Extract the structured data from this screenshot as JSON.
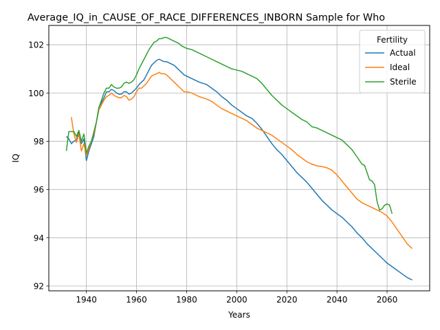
{
  "chart_data": {
    "type": "line",
    "title": "Average_IQ_in_CAUSE_OF_RACE_DIFFERENCES_INBORN Sample for Who",
    "xlabel": "Years",
    "ylabel": "IQ",
    "xlim": [
      1925,
      2077
    ],
    "ylim": [
      91.8,
      102.8
    ],
    "x_ticks": [
      1940,
      1960,
      1980,
      2000,
      2020,
      2040,
      2060
    ],
    "y_ticks": [
      92,
      94,
      96,
      98,
      100,
      102
    ],
    "grid": true,
    "legend": {
      "title": "Fertility",
      "placement": "upper right"
    },
    "series": [
      {
        "name": "Actual",
        "color": "#1f77b4",
        "points": [
          [
            1932,
            98.2
          ],
          [
            1933,
            98.1
          ],
          [
            1934,
            97.9
          ],
          [
            1935,
            98.0
          ],
          [
            1936,
            98.05
          ],
          [
            1937,
            98.4
          ],
          [
            1938,
            97.9
          ],
          [
            1939,
            98.1
          ],
          [
            1940,
            97.2
          ],
          [
            1941,
            97.6
          ],
          [
            1942,
            97.9
          ],
          [
            1943,
            98.2
          ],
          [
            1944,
            98.8
          ],
          [
            1945,
            99.4
          ],
          [
            1946,
            99.6
          ],
          [
            1947,
            99.8
          ],
          [
            1948,
            100.05
          ],
          [
            1949,
            100.05
          ],
          [
            1950,
            100.15
          ],
          [
            1951,
            100.1
          ],
          [
            1952,
            100.0
          ],
          [
            1953,
            99.95
          ],
          [
            1954,
            99.95
          ],
          [
            1955,
            100.05
          ],
          [
            1956,
            100.05
          ],
          [
            1957,
            99.95
          ],
          [
            1958,
            100.0
          ],
          [
            1959,
            100.1
          ],
          [
            1960,
            100.2
          ],
          [
            1961,
            100.35
          ],
          [
            1962,
            100.45
          ],
          [
            1963,
            100.55
          ],
          [
            1964,
            100.75
          ],
          [
            1965,
            100.95
          ],
          [
            1966,
            101.15
          ],
          [
            1967,
            101.25
          ],
          [
            1968,
            101.35
          ],
          [
            1969,
            101.4
          ],
          [
            1970,
            101.35
          ],
          [
            1971,
            101.3
          ],
          [
            1972,
            101.3
          ],
          [
            1973,
            101.25
          ],
          [
            1974,
            101.2
          ],
          [
            1975,
            101.15
          ],
          [
            1976,
            101.05
          ],
          [
            1977,
            100.95
          ],
          [
            1978,
            100.85
          ],
          [
            1979,
            100.75
          ],
          [
            1980,
            100.7
          ],
          [
            1982,
            100.6
          ],
          [
            1985,
            100.45
          ],
          [
            1988,
            100.35
          ],
          [
            1990,
            100.2
          ],
          [
            1992,
            100.05
          ],
          [
            1994,
            99.85
          ],
          [
            1996,
            99.7
          ],
          [
            1998,
            99.5
          ],
          [
            2000,
            99.35
          ],
          [
            2002,
            99.2
          ],
          [
            2004,
            99.05
          ],
          [
            2006,
            98.95
          ],
          [
            2008,
            98.75
          ],
          [
            2010,
            98.5
          ],
          [
            2012,
            98.2
          ],
          [
            2014,
            97.9
          ],
          [
            2016,
            97.65
          ],
          [
            2018,
            97.45
          ],
          [
            2020,
            97.2
          ],
          [
            2022,
            96.95
          ],
          [
            2024,
            96.7
          ],
          [
            2026,
            96.5
          ],
          [
            2028,
            96.3
          ],
          [
            2030,
            96.05
          ],
          [
            2032,
            95.8
          ],
          [
            2034,
            95.55
          ],
          [
            2036,
            95.35
          ],
          [
            2038,
            95.15
          ],
          [
            2040,
            95.0
          ],
          [
            2042,
            94.85
          ],
          [
            2044,
            94.65
          ],
          [
            2046,
            94.45
          ],
          [
            2048,
            94.2
          ],
          [
            2050,
            94.0
          ],
          [
            2052,
            93.75
          ],
          [
            2054,
            93.55
          ],
          [
            2056,
            93.35
          ],
          [
            2058,
            93.15
          ],
          [
            2060,
            92.95
          ],
          [
            2062,
            92.8
          ],
          [
            2064,
            92.65
          ],
          [
            2066,
            92.5
          ],
          [
            2068,
            92.35
          ],
          [
            2070,
            92.25
          ]
        ]
      },
      {
        "name": "Ideal",
        "color": "#ff7f0e",
        "points": [
          [
            1934,
            99.0
          ],
          [
            1935,
            98.3
          ],
          [
            1936,
            97.95
          ],
          [
            1937,
            98.3
          ],
          [
            1938,
            97.6
          ],
          [
            1939,
            97.9
          ],
          [
            1940,
            97.4
          ],
          [
            1941,
            97.7
          ],
          [
            1942,
            98.0
          ],
          [
            1943,
            98.3
          ],
          [
            1944,
            98.8
          ],
          [
            1945,
            99.3
          ],
          [
            1946,
            99.5
          ],
          [
            1947,
            99.7
          ],
          [
            1948,
            99.85
          ],
          [
            1949,
            99.9
          ],
          [
            1950,
            100.0
          ],
          [
            1951,
            99.9
          ],
          [
            1952,
            99.85
          ],
          [
            1953,
            99.8
          ],
          [
            1954,
            99.8
          ],
          [
            1955,
            99.9
          ],
          [
            1956,
            99.85
          ],
          [
            1957,
            99.7
          ],
          [
            1958,
            99.75
          ],
          [
            1959,
            99.85
          ],
          [
            1960,
            100.05
          ],
          [
            1961,
            100.2
          ],
          [
            1962,
            100.2
          ],
          [
            1963,
            100.3
          ],
          [
            1964,
            100.4
          ],
          [
            1965,
            100.55
          ],
          [
            1966,
            100.7
          ],
          [
            1967,
            100.75
          ],
          [
            1968,
            100.8
          ],
          [
            1969,
            100.85
          ],
          [
            1970,
            100.8
          ],
          [
            1971,
            100.8
          ],
          [
            1972,
            100.75
          ],
          [
            1973,
            100.65
          ],
          [
            1974,
            100.55
          ],
          [
            1975,
            100.45
          ],
          [
            1976,
            100.35
          ],
          [
            1977,
            100.25
          ],
          [
            1978,
            100.15
          ],
          [
            1979,
            100.05
          ],
          [
            1980,
            100.05
          ],
          [
            1982,
            100.0
          ],
          [
            1985,
            99.85
          ],
          [
            1988,
            99.75
          ],
          [
            1990,
            99.65
          ],
          [
            1992,
            99.5
          ],
          [
            1994,
            99.35
          ],
          [
            1996,
            99.25
          ],
          [
            1998,
            99.15
          ],
          [
            2000,
            99.05
          ],
          [
            2002,
            98.95
          ],
          [
            2004,
            98.85
          ],
          [
            2006,
            98.7
          ],
          [
            2008,
            98.55
          ],
          [
            2010,
            98.45
          ],
          [
            2012,
            98.35
          ],
          [
            2014,
            98.25
          ],
          [
            2016,
            98.1
          ],
          [
            2018,
            97.95
          ],
          [
            2020,
            97.8
          ],
          [
            2022,
            97.65
          ],
          [
            2024,
            97.45
          ],
          [
            2026,
            97.3
          ],
          [
            2028,
            97.15
          ],
          [
            2030,
            97.05
          ],
          [
            2032,
            96.98
          ],
          [
            2034,
            96.95
          ],
          [
            2036,
            96.9
          ],
          [
            2038,
            96.8
          ],
          [
            2040,
            96.6
          ],
          [
            2042,
            96.35
          ],
          [
            2044,
            96.1
          ],
          [
            2046,
            95.85
          ],
          [
            2048,
            95.6
          ],
          [
            2050,
            95.45
          ],
          [
            2052,
            95.35
          ],
          [
            2054,
            95.25
          ],
          [
            2056,
            95.15
          ],
          [
            2058,
            95.05
          ],
          [
            2060,
            94.9
          ],
          [
            2062,
            94.65
          ],
          [
            2064,
            94.35
          ],
          [
            2066,
            94.05
          ],
          [
            2068,
            93.75
          ],
          [
            2070,
            93.55
          ]
        ]
      },
      {
        "name": "Sterile",
        "color": "#2ca02c",
        "points": [
          [
            1932,
            97.6
          ],
          [
            1933,
            98.4
          ],
          [
            1934,
            98.4
          ],
          [
            1935,
            98.4
          ],
          [
            1936,
            98.2
          ],
          [
            1937,
            98.45
          ],
          [
            1938,
            98.0
          ],
          [
            1939,
            98.3
          ],
          [
            1940,
            97.5
          ],
          [
            1941,
            97.8
          ],
          [
            1942,
            98.0
          ],
          [
            1943,
            98.4
          ],
          [
            1944,
            98.8
          ],
          [
            1945,
            99.4
          ],
          [
            1946,
            99.7
          ],
          [
            1947,
            100.0
          ],
          [
            1948,
            100.2
          ],
          [
            1949,
            100.2
          ],
          [
            1950,
            100.35
          ],
          [
            1951,
            100.25
          ],
          [
            1952,
            100.2
          ],
          [
            1953,
            100.2
          ],
          [
            1954,
            100.25
          ],
          [
            1955,
            100.4
          ],
          [
            1956,
            100.45
          ],
          [
            1957,
            100.4
          ],
          [
            1958,
            100.45
          ],
          [
            1959,
            100.55
          ],
          [
            1960,
            100.75
          ],
          [
            1961,
            101.0
          ],
          [
            1962,
            101.2
          ],
          [
            1963,
            101.4
          ],
          [
            1964,
            101.6
          ],
          [
            1965,
            101.8
          ],
          [
            1966,
            101.95
          ],
          [
            1967,
            102.1
          ],
          [
            1968,
            102.15
          ],
          [
            1969,
            102.25
          ],
          [
            1970,
            102.25
          ],
          [
            1971,
            102.3
          ],
          [
            1972,
            102.3
          ],
          [
            1973,
            102.25
          ],
          [
            1974,
            102.2
          ],
          [
            1975,
            102.15
          ],
          [
            1976,
            102.1
          ],
          [
            1977,
            102.05
          ],
          [
            1978,
            101.95
          ],
          [
            1979,
            101.9
          ],
          [
            1980,
            101.85
          ],
          [
            1982,
            101.8
          ],
          [
            1984,
            101.7
          ],
          [
            1986,
            101.6
          ],
          [
            1988,
            101.5
          ],
          [
            1990,
            101.4
          ],
          [
            1992,
            101.3
          ],
          [
            1994,
            101.2
          ],
          [
            1996,
            101.1
          ],
          [
            1998,
            101.0
          ],
          [
            2000,
            100.95
          ],
          [
            2002,
            100.9
          ],
          [
            2004,
            100.8
          ],
          [
            2006,
            100.7
          ],
          [
            2008,
            100.6
          ],
          [
            2010,
            100.4
          ],
          [
            2012,
            100.15
          ],
          [
            2014,
            99.9
          ],
          [
            2016,
            99.7
          ],
          [
            2018,
            99.5
          ],
          [
            2020,
            99.35
          ],
          [
            2022,
            99.2
          ],
          [
            2024,
            99.05
          ],
          [
            2026,
            98.9
          ],
          [
            2028,
            98.8
          ],
          [
            2030,
            98.6
          ],
          [
            2032,
            98.55
          ],
          [
            2034,
            98.45
          ],
          [
            2036,
            98.35
          ],
          [
            2038,
            98.25
          ],
          [
            2040,
            98.15
          ],
          [
            2042,
            98.05
          ],
          [
            2044,
            97.85
          ],
          [
            2046,
            97.65
          ],
          [
            2048,
            97.35
          ],
          [
            2050,
            97.05
          ],
          [
            2051,
            97.0
          ],
          [
            2052,
            96.7
          ],
          [
            2053,
            96.4
          ],
          [
            2054,
            96.35
          ],
          [
            2055,
            96.2
          ],
          [
            2056,
            95.5
          ],
          [
            2057,
            95.15
          ],
          [
            2058,
            95.2
          ],
          [
            2059,
            95.35
          ],
          [
            2060,
            95.4
          ],
          [
            2061,
            95.35
          ],
          [
            2062,
            95.0
          ]
        ]
      }
    ]
  }
}
